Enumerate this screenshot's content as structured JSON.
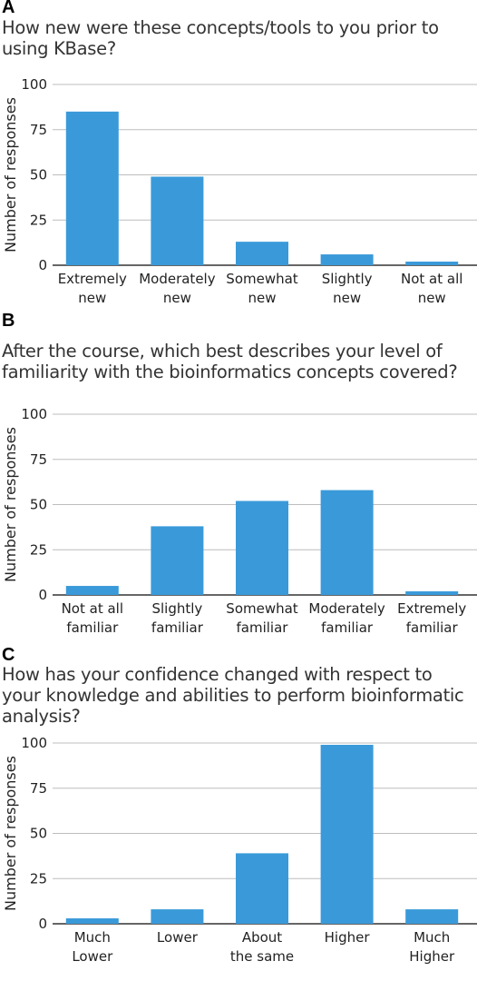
{
  "colors": {
    "bar": "#3a9ad9",
    "grid": "#bdbdbd",
    "axis": "#333333"
  },
  "chart_data": [
    {
      "type": "bar",
      "panel": "A",
      "title": "How new were these concepts/tools to you prior to using KBase?",
      "ylabel": "Number of responses",
      "xlabel": "",
      "ylim": [
        0,
        100
      ],
      "yticks": [
        0,
        25,
        50,
        75,
        100
      ],
      "grid": true,
      "categories": [
        [
          "Extremely",
          "new"
        ],
        [
          "Moderately",
          "new"
        ],
        [
          "Somewhat",
          "new"
        ],
        [
          "Slightly",
          "new"
        ],
        [
          "Not at all",
          "new"
        ]
      ],
      "values": [
        85,
        49,
        13,
        6,
        2
      ]
    },
    {
      "type": "bar",
      "panel": "B",
      "title": "After the course, which best describes your level of familiarity with the bioinformatics concepts covered?",
      "ylabel": "Number of responses",
      "xlabel": "",
      "ylim": [
        0,
        100
      ],
      "yticks": [
        0,
        25,
        50,
        75,
        100
      ],
      "grid": true,
      "categories": [
        [
          "Not at all",
          "familiar"
        ],
        [
          "Slightly",
          "familiar"
        ],
        [
          "Somewhat",
          "familiar"
        ],
        [
          "Moderately",
          "familiar"
        ],
        [
          "Extremely",
          "familiar"
        ]
      ],
      "values": [
        5,
        38,
        52,
        58,
        2
      ]
    },
    {
      "type": "bar",
      "panel": "C",
      "title": "How has your confidence changed with respect to your knowledge and abilities to perform bioinformatic analysis?",
      "ylabel": "Number of responses",
      "xlabel": "",
      "ylim": [
        0,
        100
      ],
      "yticks": [
        0,
        25,
        50,
        75,
        100
      ],
      "grid": true,
      "categories": [
        [
          "Much",
          "Lower"
        ],
        [
          "Lower"
        ],
        [
          "About",
          "the same"
        ],
        [
          "Higher"
        ],
        [
          "Much",
          "Higher"
        ]
      ],
      "values": [
        3,
        8,
        39,
        99,
        8
      ]
    }
  ]
}
